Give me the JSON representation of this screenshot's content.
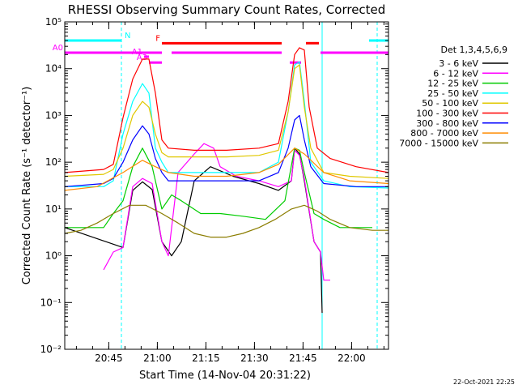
{
  "chart_data": {
    "type": "line",
    "title": "RHESSI Observing Summary Count Rates, Corrected",
    "ylabel": "Corrected Count Rate (s⁻¹ detector⁻¹)",
    "xlabel": "Start Time (14-Nov-04 20:31:22)",
    "y_scale": "log",
    "ylim": [
      0.01,
      100000
    ],
    "xlim_minutes": [
      0,
      100
    ],
    "x_ticks": [
      {
        "label": "20:45",
        "minutes": 13.6
      },
      {
        "label": "21:00",
        "minutes": 28.6
      },
      {
        "label": "21:15",
        "minutes": 43.6
      },
      {
        "label": "21:30",
        "minutes": 58.6
      },
      {
        "label": "21:45",
        "minutes": 73.6
      },
      {
        "label": "22:00",
        "minutes": 88.6
      }
    ],
    "y_ticks": [
      {
        "label": "10⁻²",
        "value": 0.01
      },
      {
        "label": "10⁻¹",
        "value": 0.1
      },
      {
        "label": "10⁰",
        "value": 1
      },
      {
        "label": "10¹",
        "value": 10
      },
      {
        "label": "10²",
        "value": 100
      },
      {
        "label": "10³",
        "value": 1000
      },
      {
        "label": "10⁴",
        "value": 10000
      },
      {
        "label": "10⁵",
        "value": 100000
      }
    ],
    "legend_title": "Det 1,3,4,5,6,9",
    "legend_position": "right",
    "date_stamp": "22-Oct-2021 22:25",
    "series": [
      {
        "name": "3 - 6 keV",
        "color": "#000000",
        "points": [
          [
            0,
            4
          ],
          [
            18,
            1.5
          ],
          [
            21,
            25
          ],
          [
            24,
            38
          ],
          [
            27,
            26
          ],
          [
            30,
            2
          ],
          [
            33,
            1
          ],
          [
            36,
            2
          ],
          [
            40,
            40
          ],
          [
            45,
            80
          ],
          [
            52,
            50
          ],
          [
            60,
            35
          ],
          [
            66,
            25
          ],
          [
            70,
            40
          ],
          [
            71,
            200
          ],
          [
            72.5,
            150
          ],
          [
            74,
            40
          ],
          [
            77,
            2
          ],
          [
            79,
            1.2
          ],
          [
            79.5,
            0.06
          ]
        ]
      },
      {
        "name": "6 - 12 keV",
        "color": "#ff00ff",
        "points": [
          [
            12,
            0.5
          ],
          [
            15,
            1.2
          ],
          [
            18,
            1.5
          ],
          [
            21,
            30
          ],
          [
            24,
            45
          ],
          [
            27,
            35
          ],
          [
            30,
            2
          ],
          [
            32,
            1
          ],
          [
            35,
            60
          ],
          [
            40,
            150
          ],
          [
            43,
            250
          ],
          [
            46,
            200
          ],
          [
            48,
            80
          ],
          [
            53,
            50
          ],
          [
            60,
            40
          ],
          [
            66,
            30
          ],
          [
            70,
            40
          ],
          [
            71,
            180
          ],
          [
            72.5,
            140
          ],
          [
            74,
            45
          ],
          [
            77,
            2
          ],
          [
            79,
            1.2
          ],
          [
            80,
            0.3
          ],
          [
            82,
            0.3
          ]
        ]
      },
      {
        "name": "12 - 25 keV",
        "color": "#00cc00",
        "points": [
          [
            0,
            4
          ],
          [
            12,
            4
          ],
          [
            15,
            8
          ],
          [
            18,
            15
          ],
          [
            21,
            80
          ],
          [
            24,
            200
          ],
          [
            27,
            80
          ],
          [
            30,
            10
          ],
          [
            33,
            20
          ],
          [
            36,
            15
          ],
          [
            42,
            8
          ],
          [
            48,
            8
          ],
          [
            55,
            7
          ],
          [
            62,
            6
          ],
          [
            68,
            15
          ],
          [
            71,
            200
          ],
          [
            72.5,
            180
          ],
          [
            74,
            60
          ],
          [
            77,
            8
          ],
          [
            80,
            6
          ],
          [
            85,
            4
          ],
          [
            95,
            4
          ]
        ]
      },
      {
        "name": "25 - 50 keV",
        "color": "#00ffff",
        "points": [
          [
            0,
            30
          ],
          [
            12,
            30
          ],
          [
            15,
            40
          ],
          [
            18,
            400
          ],
          [
            21,
            2000
          ],
          [
            24,
            4800
          ],
          [
            26,
            3000
          ],
          [
            28,
            200
          ],
          [
            30,
            100
          ],
          [
            32,
            60
          ],
          [
            40,
            60
          ],
          [
            50,
            60
          ],
          [
            60,
            60
          ],
          [
            66,
            100
          ],
          [
            69,
            1200
          ],
          [
            71,
            12000
          ],
          [
            72.5,
            14000
          ],
          [
            74,
            2000
          ],
          [
            76,
            100
          ],
          [
            80,
            40
          ],
          [
            88,
            30
          ],
          [
            100,
            28
          ]
        ]
      },
      {
        "name": "50 - 100 keV",
        "color": "#e0c800",
        "points": [
          [
            0,
            50
          ],
          [
            12,
            55
          ],
          [
            15,
            70
          ],
          [
            18,
            200
          ],
          [
            21,
            1000
          ],
          [
            24,
            2000
          ],
          [
            26,
            1500
          ],
          [
            28,
            400
          ],
          [
            30,
            160
          ],
          [
            32,
            130
          ],
          [
            40,
            130
          ],
          [
            50,
            130
          ],
          [
            60,
            140
          ],
          [
            66,
            180
          ],
          [
            69,
            1200
          ],
          [
            71,
            10000
          ],
          [
            72.5,
            12000
          ],
          [
            74,
            1500
          ],
          [
            76,
            200
          ],
          [
            80,
            60
          ],
          [
            88,
            50
          ],
          [
            100,
            45
          ]
        ]
      },
      {
        "name": "100 - 300 keV",
        "color": "#ff0000",
        "points": [
          [
            0,
            60
          ],
          [
            12,
            70
          ],
          [
            15,
            90
          ],
          [
            18,
            900
          ],
          [
            21,
            6000
          ],
          [
            24,
            16000
          ],
          [
            26,
            16000
          ],
          [
            28,
            3000
          ],
          [
            30,
            300
          ],
          [
            32,
            200
          ],
          [
            40,
            180
          ],
          [
            50,
            180
          ],
          [
            60,
            200
          ],
          [
            66,
            250
          ],
          [
            69,
            2000
          ],
          [
            71,
            20000
          ],
          [
            72.5,
            28000
          ],
          [
            74,
            25000
          ],
          [
            75.5,
            1500
          ],
          [
            78,
            200
          ],
          [
            82,
            120
          ],
          [
            90,
            80
          ],
          [
            100,
            60
          ]
        ]
      },
      {
        "name": "300 - 800 keV",
        "color": "#0000ff",
        "points": [
          [
            0,
            30
          ],
          [
            12,
            35
          ],
          [
            15,
            45
          ],
          [
            18,
            100
          ],
          [
            21,
            300
          ],
          [
            24,
            600
          ],
          [
            26,
            400
          ],
          [
            28,
            120
          ],
          [
            30,
            60
          ],
          [
            32,
            40
          ],
          [
            40,
            40
          ],
          [
            50,
            40
          ],
          [
            60,
            40
          ],
          [
            66,
            60
          ],
          [
            69,
            200
          ],
          [
            71,
            800
          ],
          [
            72.5,
            1000
          ],
          [
            74,
            300
          ],
          [
            76,
            80
          ],
          [
            80,
            35
          ],
          [
            90,
            30
          ],
          [
            100,
            30
          ]
        ]
      },
      {
        "name": "800 - 7000 keV",
        "color": "#ff8c00",
        "points": [
          [
            0,
            25
          ],
          [
            10,
            30
          ],
          [
            18,
            60
          ],
          [
            24,
            110
          ],
          [
            28,
            80
          ],
          [
            32,
            60
          ],
          [
            40,
            50
          ],
          [
            50,
            50
          ],
          [
            60,
            60
          ],
          [
            66,
            90
          ],
          [
            71,
            200
          ],
          [
            74,
            150
          ],
          [
            80,
            60
          ],
          [
            88,
            40
          ],
          [
            100,
            35
          ]
        ]
      },
      {
        "name": "7000 - 15000 keV",
        "color": "#8b7d00",
        "points": [
          [
            0,
            3
          ],
          [
            5,
            3.5
          ],
          [
            10,
            5
          ],
          [
            15,
            8
          ],
          [
            20,
            12
          ],
          [
            25,
            12
          ],
          [
            30,
            8
          ],
          [
            35,
            5
          ],
          [
            40,
            3
          ],
          [
            45,
            2.5
          ],
          [
            50,
            2.5
          ],
          [
            55,
            3
          ],
          [
            60,
            4
          ],
          [
            65,
            6
          ],
          [
            70,
            10
          ],
          [
            74,
            12
          ],
          [
            78,
            9
          ],
          [
            82,
            6
          ],
          [
            88,
            4
          ],
          [
            95,
            3.5
          ],
          [
            100,
            3.5
          ]
        ]
      }
    ],
    "annotations": [
      {
        "label": "N",
        "color": "#00ffff",
        "segments": [
          [
            0,
            17.5
          ],
          [
            94,
            100
          ]
        ],
        "value": 40000
      },
      {
        "label": "F",
        "color": "#ff0000",
        "segments": [
          [
            30,
            67
          ],
          [
            74.5,
            78.5
          ]
        ],
        "value": 35000
      },
      {
        "label": "A0",
        "color": "#ff00ff",
        "segments": [
          [
            0,
            30
          ],
          [
            33,
            67
          ],
          [
            79,
            100
          ]
        ],
        "value": 22000
      },
      {
        "label": "A1",
        "color": "#ff00ff",
        "segments": [
          [
            24.5,
            26
          ]
        ],
        "value": 18000
      },
      {
        "label": "A3",
        "color": "#ff00ff",
        "segments": [
          [
            26,
            30
          ],
          [
            69.5,
            73
          ]
        ],
        "value": 13500
      }
    ],
    "vertical_markers": [
      {
        "color": "#00ffff",
        "style": "solid",
        "minutes": 0
      },
      {
        "color": "#00ffff",
        "style": "dashed",
        "minutes": 17.5
      },
      {
        "color": "#00ffff",
        "style": "solid",
        "minutes": 79.5
      },
      {
        "color": "#00ffff",
        "style": "dashed",
        "minutes": 96.5
      }
    ]
  }
}
